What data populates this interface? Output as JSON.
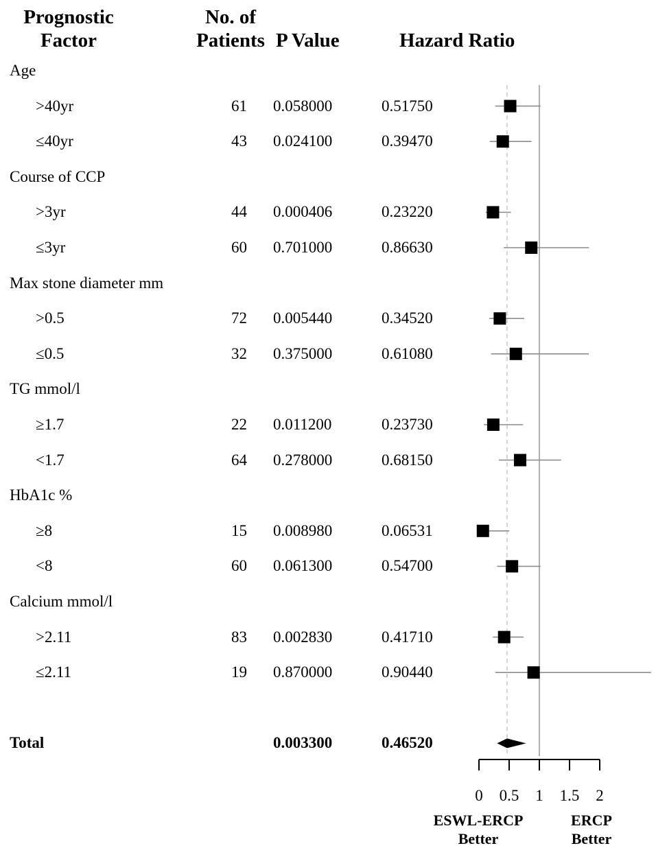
{
  "headers": {
    "factor_l1": "Prognostic",
    "factor_l2": "Factor",
    "patients_l1": "No. of",
    "patients_l2": "Patients",
    "pvalue": "P Value",
    "hr": "Hazard Ratio"
  },
  "footer": {
    "left_l1": "ESWL-ERCP",
    "left_l2": "Better",
    "right_l1": "ERCP",
    "right_l2": "Better"
  },
  "colors": {
    "marker": "#000000",
    "ci_line": "#8c8c8c",
    "ref_line": "#b0b0b0",
    "dashed_line": "#c8c8c8"
  },
  "chart_data": {
    "type": "forest",
    "xlim": [
      0,
      2
    ],
    "xticks": [
      "0",
      "0.5",
      "1",
      "1.5",
      "2"
    ],
    "reference_line": 1,
    "dashed_line": 0.4652,
    "rows": [
      {
        "kind": "group",
        "label": "Age"
      },
      {
        "kind": "item",
        "label": ">40yr",
        "n": "61",
        "p": "0.058000",
        "hr_label": "0.51750",
        "hr": 0.5175,
        "ci": [
          0.27,
          1.02
        ]
      },
      {
        "kind": "item",
        "label": "≤40yr",
        "n": "43",
        "p": "0.024100",
        "hr_label": "0.39470",
        "hr": 0.3947,
        "ci": [
          0.18,
          0.87
        ]
      },
      {
        "kind": "group",
        "label": "Course of CCP"
      },
      {
        "kind": "item",
        "label": ">3yr",
        "n": "44",
        "p": "0.000406",
        "hr_label": "0.23220",
        "hr": 0.2322,
        "ci": [
          0.11,
          0.53
        ]
      },
      {
        "kind": "item",
        "label": "≤3yr",
        "n": "60",
        "p": "0.701000",
        "hr_label": "0.86630",
        "hr": 0.8663,
        "ci": [
          0.41,
          1.82
        ]
      },
      {
        "kind": "group",
        "label": "Max stone diameter mm"
      },
      {
        "kind": "item",
        "label": ">0.5",
        "n": "72",
        "p": "0.005440",
        "hr_label": "0.34520",
        "hr": 0.3452,
        "ci": [
          0.17,
          0.75
        ]
      },
      {
        "kind": "item",
        "label": "≤0.5",
        "n": "32",
        "p": "0.375000",
        "hr_label": "0.61080",
        "hr": 0.6108,
        "ci": [
          0.2,
          1.82
        ]
      },
      {
        "kind": "group",
        "label": "TG mmol/l"
      },
      {
        "kind": "item",
        "label": "≥1.7",
        "n": "22",
        "p": "0.011200",
        "hr_label": "0.23730",
        "hr": 0.2373,
        "ci": [
          0.08,
          0.73
        ]
      },
      {
        "kind": "item",
        "label": "<1.7",
        "n": "64",
        "p": "0.278000",
        "hr_label": "0.68150",
        "hr": 0.6815,
        "ci": [
          0.33,
          1.36
        ]
      },
      {
        "kind": "group",
        "label": "HbA1c %"
      },
      {
        "kind": "item",
        "label": "≥8",
        "n": "15",
        "p": "0.008980",
        "hr_label": "0.06531",
        "hr": 0.0653,
        "ci": [
          0.01,
          0.5
        ]
      },
      {
        "kind": "item",
        "label": "<8",
        "n": "60",
        "p": "0.061300",
        "hr_label": "0.54700",
        "hr": 0.547,
        "ci": [
          0.3,
          1.02
        ]
      },
      {
        "kind": "group",
        "label": "Calcium mmol/l"
      },
      {
        "kind": "item",
        "label": ">2.11",
        "n": "83",
        "p": "0.002830",
        "hr_label": "0.41710",
        "hr": 0.4171,
        "ci": [
          0.23,
          0.74
        ]
      },
      {
        "kind": "item",
        "label": "≤2.11",
        "n": "19",
        "p": "0.870000",
        "hr_label": "0.90440",
        "hr": 0.9044,
        "ci": [
          0.27,
          2.85
        ]
      },
      {
        "kind": "spacer"
      },
      {
        "kind": "total",
        "label": "Total",
        "p": "0.003300",
        "hr_label": "0.46520",
        "hr": 0.4652,
        "ci": [
          0.3,
          0.78
        ]
      }
    ]
  }
}
